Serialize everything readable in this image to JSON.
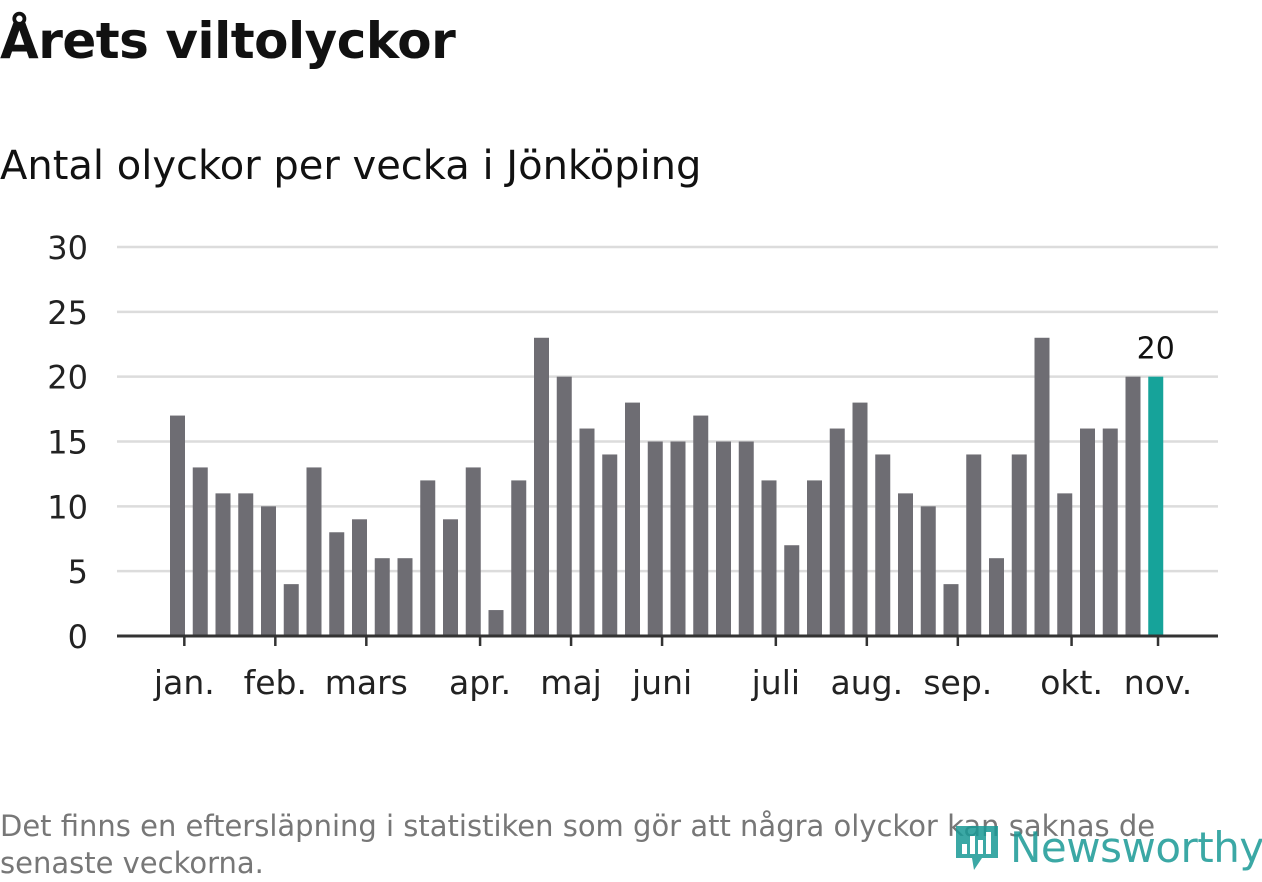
{
  "title": "Årets viltolyckor",
  "subtitle": "Antal olyckor per vecka i Jönköping",
  "footnote": "Det finns en eftersläpning i statistiken som gör att några olyckor kan saknas de senaste veckorna.",
  "brand": "Newsworthy",
  "icon_name": "newsworthy-logo-icon",
  "colors": {
    "bar": "#6e6d73",
    "highlight": "#16a39a",
    "grid": "#dcdcdc",
    "axis": "#333333",
    "brand": "#1a9a96"
  },
  "chart_data": {
    "type": "bar",
    "title": "Antal olyckor per vecka i Jönköping",
    "xlabel": "",
    "ylabel": "",
    "ylim": [
      0,
      30
    ],
    "yticks": [
      0,
      5,
      10,
      15,
      20,
      25,
      30
    ],
    "grid": true,
    "values": [
      17,
      13,
      11,
      11,
      10,
      4,
      13,
      8,
      9,
      6,
      6,
      12,
      9,
      13,
      2,
      12,
      23,
      20,
      16,
      14,
      18,
      15,
      15,
      17,
      15,
      15,
      12,
      7,
      12,
      16,
      18,
      14,
      11,
      10,
      4,
      14,
      6,
      14,
      23,
      11,
      16,
      16,
      20,
      20
    ],
    "highlight_index": 43,
    "highlight_label": "20",
    "month_ticks": [
      {
        "label": "jan.",
        "bar": 0.3
      },
      {
        "label": "feb.",
        "bar": 4.3
      },
      {
        "label": "mars",
        "bar": 8.3
      },
      {
        "label": "apr.",
        "bar": 13.3
      },
      {
        "label": "maj",
        "bar": 17.3
      },
      {
        "label": "juni",
        "bar": 21.3
      },
      {
        "label": "juli",
        "bar": 26.3
      },
      {
        "label": "aug.",
        "bar": 30.3
      },
      {
        "label": "sep.",
        "bar": 34.3
      },
      {
        "label": "okt.",
        "bar": 39.3
      },
      {
        "label": "nov.",
        "bar": 43.1
      }
    ]
  }
}
